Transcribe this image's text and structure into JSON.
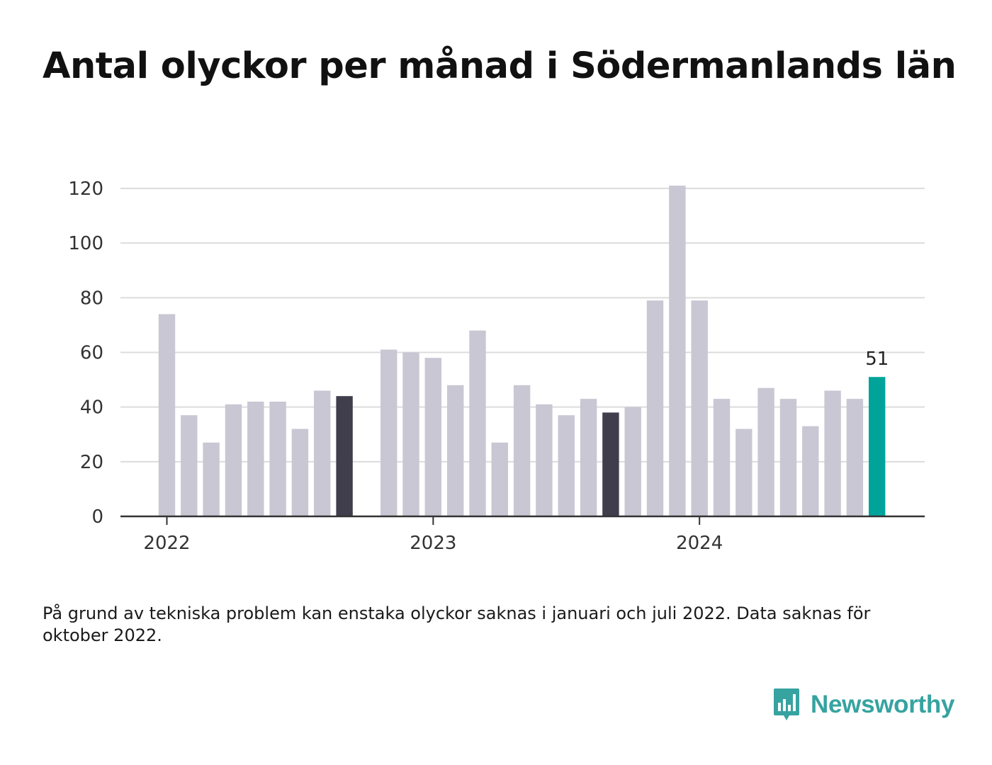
{
  "title": "Antal olyckor per månad i Södermanlands län",
  "footnote": "På grund av tekniska problem kan enstaka olyckor saknas i januari och juli 2022. Data saknas för oktober 2022.",
  "logo": {
    "text": "Newsworthy",
    "icon": "bar-chart-icon"
  },
  "colors": {
    "default_bar": "#c8c7d3",
    "highlight_bar": "#403e4c",
    "latest_bar": "#00a39a",
    "grid": "#dcdcdc",
    "axis": "#333333",
    "logo": "#36a3a0"
  },
  "chart_data": {
    "type": "bar",
    "title": "Antal olyckor per månad i Södermanlands län",
    "xlabel": "",
    "ylabel": "",
    "ylim": [
      0,
      120
    ],
    "yticks": [
      "0",
      "20",
      "40",
      "60",
      "80",
      "100",
      "120"
    ],
    "xtick_labels": [
      "2022",
      "2023",
      "2024"
    ],
    "x": [
      "2022-01",
      "2022-02",
      "2022-03",
      "2022-04",
      "2022-05",
      "2022-06",
      "2022-07",
      "2022-08",
      "2022-09",
      "2022-10",
      "2022-11",
      "2022-12",
      "2023-01",
      "2023-02",
      "2023-03",
      "2023-04",
      "2023-05",
      "2023-06",
      "2023-07",
      "2023-08",
      "2023-09",
      "2023-10",
      "2023-11",
      "2023-12",
      "2024-01",
      "2024-02",
      "2024-03",
      "2024-04",
      "2024-05",
      "2024-06",
      "2024-07",
      "2024-08",
      "2024-09"
    ],
    "values": [
      74,
      37,
      27,
      41,
      42,
      42,
      32,
      46,
      44,
      null,
      61,
      60,
      58,
      48,
      68,
      27,
      48,
      41,
      37,
      43,
      38,
      40,
      79,
      121,
      79,
      43,
      32,
      47,
      43,
      33,
      46,
      43,
      51
    ],
    "highlight_months": [
      "2022-09",
      "2023-09"
    ],
    "latest_month": "2024-09",
    "latest_label": "51",
    "grid": true,
    "legend": "none"
  }
}
